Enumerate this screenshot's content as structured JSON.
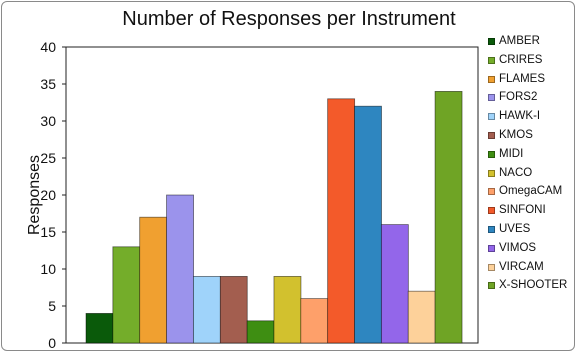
{
  "chart_data": {
    "type": "bar",
    "title": "Number of Responses per Instrument",
    "xlabel": "",
    "ylabel": "Responses",
    "ylim": [
      0,
      40
    ],
    "yticks": [
      0,
      5,
      10,
      15,
      20,
      25,
      30,
      35,
      40
    ],
    "grid": false,
    "legend_position": "right",
    "categories": [
      "AMBER",
      "CRIRES",
      "FLAMES",
      "FORS2",
      "HAWK-I",
      "KMOS",
      "MIDI",
      "NACO",
      "OmegaCAM",
      "SINFONI",
      "UVES",
      "VIMOS",
      "VIRCAM",
      "X-SHOOTER"
    ],
    "values": [
      4,
      13,
      17,
      20,
      9,
      9,
      3,
      9,
      6,
      33,
      32,
      16,
      7,
      34
    ],
    "colors": [
      "#0a5a0a",
      "#74ad2a",
      "#f0a030",
      "#9b93ec",
      "#9fd3fa",
      "#a35e4f",
      "#3e8e12",
      "#d2c12e",
      "#fea06a",
      "#f35a2a",
      "#2e86c0",
      "#9366ea",
      "#fdd19a",
      "#6fa425"
    ]
  }
}
